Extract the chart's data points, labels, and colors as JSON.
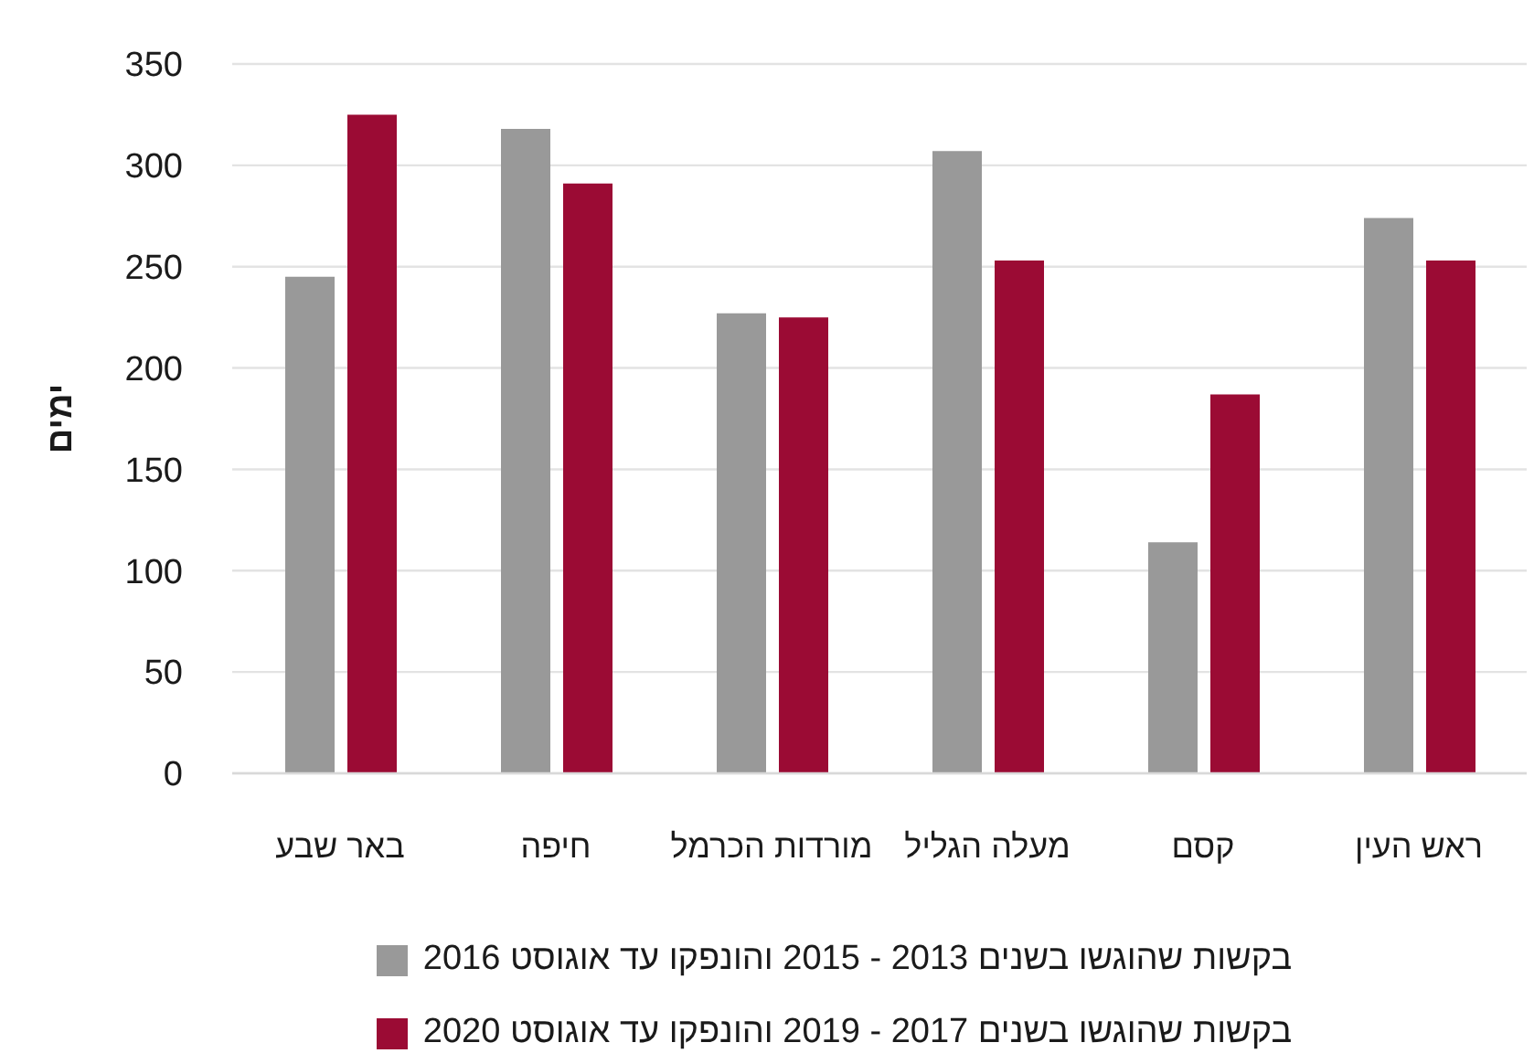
{
  "chart_data": {
    "type": "bar",
    "ylabel": "ימים",
    "categories": [
      "באר שבע",
      "חיפה",
      "מורדות הכרמל",
      "מעלה הגליל",
      "קסם",
      "ראש העין"
    ],
    "series": [
      {
        "name": "בקשות שהוגשו בשנים 2013 - 2015 והונפקו עד אוגוסט 2016",
        "color": "#999999",
        "values": [
          245,
          318,
          227,
          307,
          114,
          274
        ]
      },
      {
        "name": "בקשות שהוגשו בשנים 2017 - 2019 והונפקו עד אוגוסט 2020",
        "color": "#9b0b34",
        "values": [
          325,
          291,
          225,
          253,
          187,
          253
        ]
      }
    ],
    "ylim": [
      0,
      350
    ],
    "yticks": [
      0,
      50,
      100,
      150,
      200,
      250,
      300,
      350
    ],
    "grid": "y",
    "legend": "bottom"
  }
}
